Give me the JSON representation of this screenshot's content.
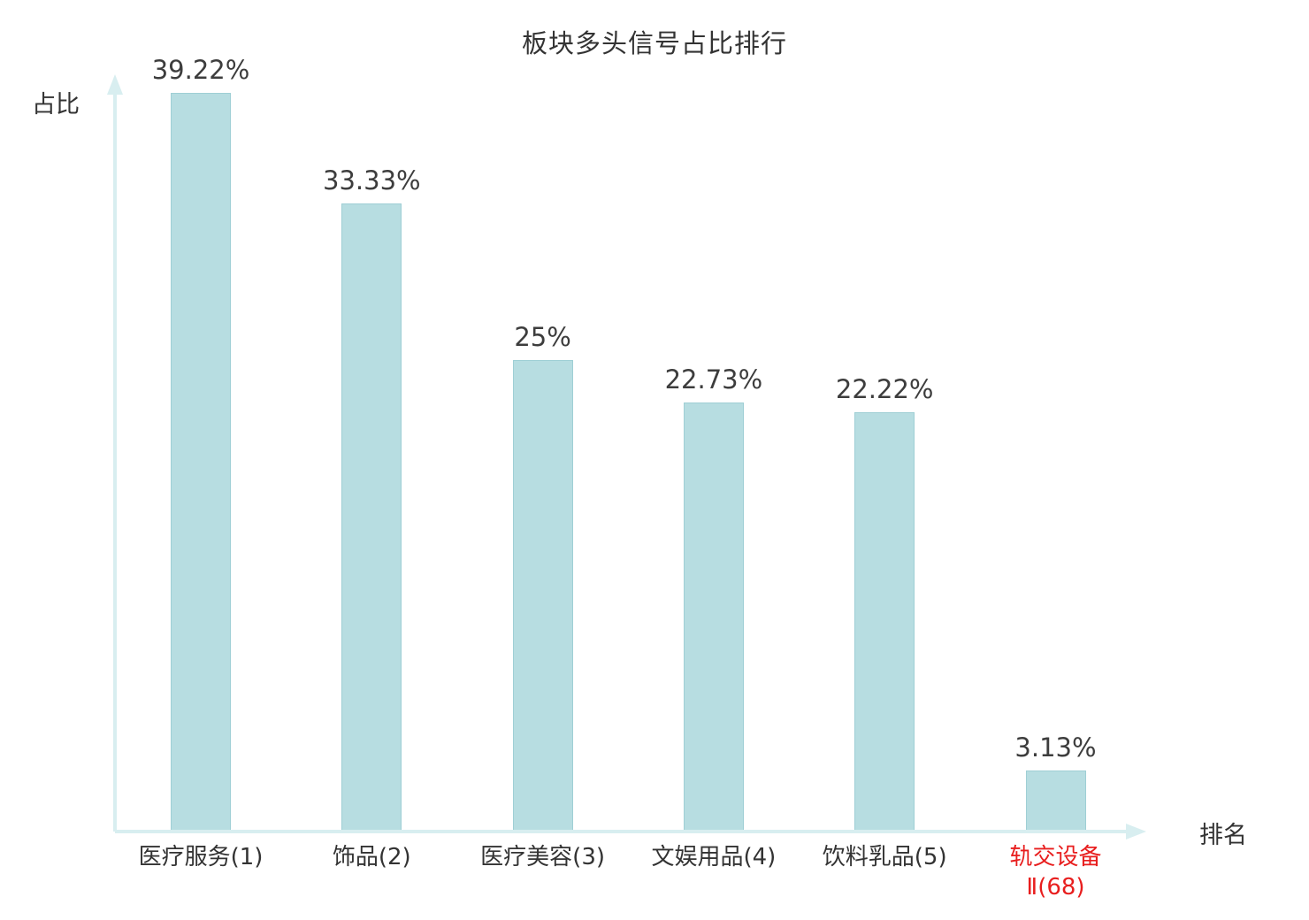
{
  "chart_data": {
    "type": "bar",
    "title": "板块多头信号占比排行",
    "xlabel": "排名",
    "ylabel": "占比",
    "categories": [
      "医疗服务(1)",
      "饰品(2)",
      "医疗美容(3)",
      "文娱用品(4)",
      "饮料乳品(5)",
      "轨交设备Ⅱ(68)"
    ],
    "category_lines": [
      [
        "医疗服务(1)"
      ],
      [
        "饰品(2)"
      ],
      [
        "医疗美容(3)"
      ],
      [
        "文娱用品(4)"
      ],
      [
        "饮料乳品(5)"
      ],
      [
        "轨交设备",
        "Ⅱ(68)"
      ]
    ],
    "values": [
      39.22,
      33.33,
      25,
      22.73,
      22.22,
      3.13
    ],
    "value_labels": [
      "39.22%",
      "33.33%",
      "25%",
      "22.73%",
      "22.22%",
      "3.13%"
    ],
    "ylim": [
      0,
      40
    ],
    "grid": false,
    "legend": false,
    "bar_color": "#b7dde1",
    "bar_border_color": "#9fcfd5",
    "axis_color": "#d8eef0",
    "label_color": "#3d3d3d",
    "highlight_index": 5,
    "highlight_color": "#e81e1e"
  }
}
